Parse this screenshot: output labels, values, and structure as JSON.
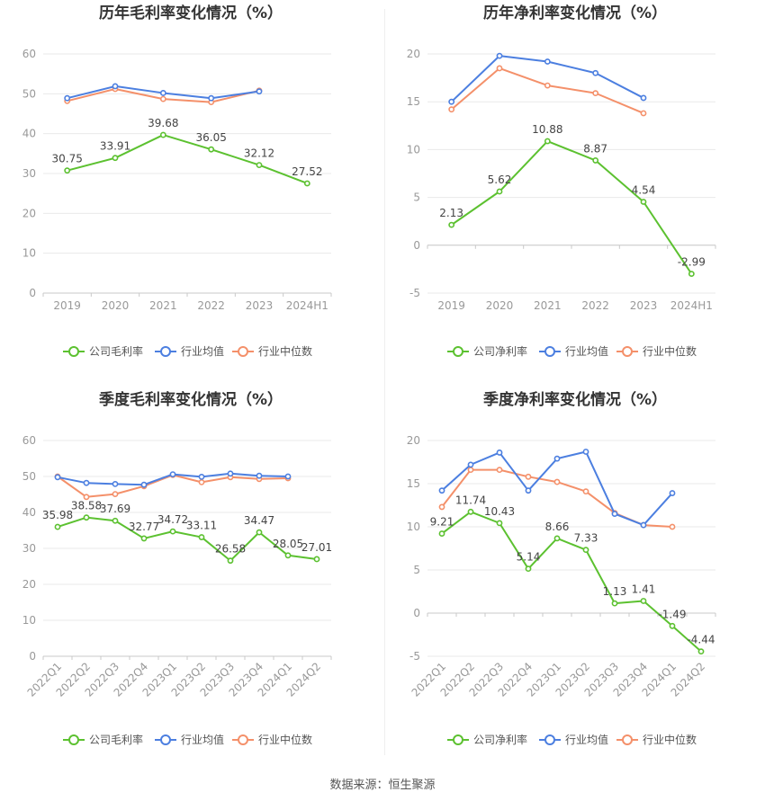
{
  "source_text": "数据来源：恒生聚源",
  "colors": {
    "company": "#5cc130",
    "industry_avg": "#4c7fe0",
    "industry_median": "#f4906a",
    "grid": "#e9e9e9",
    "axis": "#c9c9c9",
    "tick": "#999999",
    "title": "#333333",
    "label": "#444444"
  },
  "chart_data": [
    {
      "id": "annual-gross",
      "type": "line",
      "title": "历年毛利率变化情况（%）",
      "categories": [
        "2019",
        "2020",
        "2021",
        "2022",
        "2023",
        "2024H1"
      ],
      "ylim": [
        0,
        60
      ],
      "yticks": [
        0,
        10,
        20,
        30,
        40,
        50,
        60
      ],
      "x_rotated": false,
      "grid": true,
      "legend_position": "bottom",
      "series": [
        {
          "name": "公司毛利率",
          "role": "company",
          "labeled": true,
          "values": [
            30.75,
            33.91,
            39.68,
            36.05,
            32.12,
            27.52
          ]
        },
        {
          "name": "行业均值",
          "role": "industry_avg",
          "labeled": false,
          "values": [
            48.9,
            51.9,
            50.2,
            48.9,
            50.6,
            null
          ]
        },
        {
          "name": "行业中位数",
          "role": "industry_median",
          "labeled": false,
          "values": [
            48.2,
            51.2,
            48.7,
            47.9,
            50.8,
            null
          ]
        }
      ]
    },
    {
      "id": "annual-net",
      "type": "line",
      "title": "历年净利率变化情况（%）",
      "categories": [
        "2019",
        "2020",
        "2021",
        "2022",
        "2023",
        "2024H1"
      ],
      "ylim": [
        -5,
        20
      ],
      "yticks": [
        -5,
        0,
        5,
        10,
        15,
        20
      ],
      "x_rotated": false,
      "grid": true,
      "legend_position": "bottom",
      "series": [
        {
          "name": "公司净利率",
          "role": "company",
          "labeled": true,
          "values": [
            2.13,
            5.62,
            10.88,
            8.87,
            4.54,
            -2.99
          ]
        },
        {
          "name": "行业均值",
          "role": "industry_avg",
          "labeled": false,
          "values": [
            15.0,
            19.8,
            19.2,
            18.0,
            15.4,
            null
          ]
        },
        {
          "name": "行业中位数",
          "role": "industry_median",
          "labeled": false,
          "values": [
            14.2,
            18.5,
            16.7,
            15.9,
            13.8,
            null
          ]
        }
      ]
    },
    {
      "id": "quarterly-gross",
      "type": "line",
      "title": "季度毛利率变化情况（%）",
      "categories": [
        "2022Q1",
        "2022Q2",
        "2022Q3",
        "2022Q4",
        "2023Q1",
        "2023Q2",
        "2023Q3",
        "2023Q4",
        "2024Q1",
        "2024Q2"
      ],
      "ylim": [
        0,
        60
      ],
      "yticks": [
        0,
        10,
        20,
        30,
        40,
        50,
        60
      ],
      "x_rotated": true,
      "grid": true,
      "legend_position": "bottom",
      "series": [
        {
          "name": "公司毛利率",
          "role": "company",
          "labeled": true,
          "values": [
            35.98,
            38.58,
            37.69,
            32.77,
            34.72,
            33.11,
            26.58,
            34.47,
            28.05,
            27.01
          ]
        },
        {
          "name": "行业均值",
          "role": "industry_avg",
          "labeled": false,
          "values": [
            49.8,
            48.2,
            47.9,
            47.7,
            50.6,
            49.9,
            50.8,
            50.2,
            50.0,
            null
          ]
        },
        {
          "name": "行业中位数",
          "role": "industry_median",
          "labeled": false,
          "values": [
            50.0,
            44.3,
            45.1,
            47.3,
            50.4,
            48.4,
            49.8,
            49.3,
            49.5,
            null
          ]
        }
      ]
    },
    {
      "id": "quarterly-net",
      "type": "line",
      "title": "季度净利率变化情况（%）",
      "categories": [
        "2022Q1",
        "2022Q2",
        "2022Q3",
        "2022Q4",
        "2023Q1",
        "2023Q2",
        "2023Q3",
        "2023Q4",
        "2024Q1",
        "2024Q2"
      ],
      "ylim": [
        -5,
        20
      ],
      "yticks": [
        -5,
        0,
        5,
        10,
        15,
        20
      ],
      "x_rotated": true,
      "grid": true,
      "legend_position": "bottom",
      "series": [
        {
          "name": "公司净利率",
          "role": "company",
          "labeled": true,
          "values": [
            9.21,
            11.74,
            10.43,
            5.14,
            8.66,
            7.33,
            1.13,
            1.41,
            -1.49,
            -4.44
          ]
        },
        {
          "name": "行业均值",
          "role": "industry_avg",
          "labeled": false,
          "values": [
            14.2,
            17.2,
            18.6,
            14.2,
            17.9,
            18.7,
            11.5,
            10.2,
            13.9,
            null
          ]
        },
        {
          "name": "行业中位数",
          "role": "industry_median",
          "labeled": false,
          "values": [
            12.3,
            16.6,
            16.6,
            15.8,
            15.2,
            14.1,
            11.6,
            10.2,
            10.0,
            null
          ]
        }
      ]
    }
  ]
}
